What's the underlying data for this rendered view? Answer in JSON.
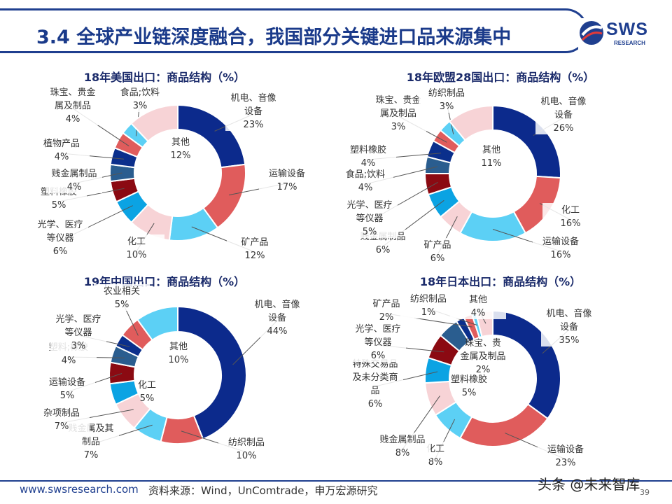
{
  "header": {
    "title": "3.4 全球产业链深度融合，我国部分关键进口品来源集中",
    "logo_text": "SWS",
    "logo_sub": "RESEARCH"
  },
  "footer": {
    "url": "www.swsresearch.com",
    "source": "资料来源：Wind，UnComtrade，申万宏源研究",
    "watermark": "头条 @未来智库",
    "page": "39"
  },
  "chart_data": [
    {
      "type": "pie",
      "title": "18年美国出口：商品结构（%）",
      "slices": [
        {
          "name": "机电、音像设备",
          "value": 23,
          "color": "#0c2a8c"
        },
        {
          "name": "运输设备",
          "value": 17,
          "color": "#e05c5c"
        },
        {
          "name": "矿产品",
          "value": 12,
          "color": "#5cd0f5"
        },
        {
          "name": "化工",
          "value": 10,
          "color": "#f7d3d6"
        },
        {
          "name": "光学、医疗等仪器",
          "value": 6,
          "color": "#0ba3e3"
        },
        {
          "name": "塑料橡胶",
          "value": 5,
          "color": "#8b0a12"
        },
        {
          "name": "贱金属制品",
          "value": 4,
          "color": "#2a5d8f"
        },
        {
          "name": "植物产品",
          "value": 4,
          "color": "#0b2f8c"
        },
        {
          "name": "珠宝、贵金属及制品",
          "value": 4,
          "color": "#e05c5c"
        },
        {
          "name": "食品;饮料",
          "value": 3,
          "color": "#5cd0f5"
        },
        {
          "name": "其他",
          "value": 12,
          "color": "#f7d3d6"
        }
      ]
    },
    {
      "type": "pie",
      "title": "18年欧盟28国出口：商品结构（%）",
      "slices": [
        {
          "name": "机电、音像设备",
          "value": 26,
          "color": "#0c2a8c"
        },
        {
          "name": "化工",
          "value": 16,
          "color": "#e05c5c"
        },
        {
          "name": "运输设备",
          "value": 16,
          "color": "#5cd0f5"
        },
        {
          "name": "矿产品",
          "value": 6,
          "color": "#f7d3d6"
        },
        {
          "name": "贱金属制品",
          "value": 6,
          "color": "#0ba3e3"
        },
        {
          "name": "光学、医疗等仪器",
          "value": 5,
          "color": "#8b0a12"
        },
        {
          "name": "食品;饮料",
          "value": 4,
          "color": "#2a5d8f"
        },
        {
          "name": "塑料橡胶",
          "value": 4,
          "color": "#0b2f8c"
        },
        {
          "name": "珠宝、贵金属及制品",
          "value": 3,
          "color": "#e05c5c"
        },
        {
          "name": "纺织制品",
          "value": 3,
          "color": "#5cd0f5"
        },
        {
          "name": "其他",
          "value": 11,
          "color": "#f7d3d6"
        }
      ]
    },
    {
      "type": "pie",
      "title": "19年中国出口：商品结构（%）",
      "slices": [
        {
          "name": "机电、音像设备",
          "value": 44,
          "color": "#0c2a8c"
        },
        {
          "name": "纺织制品",
          "value": 10,
          "color": "#e05c5c"
        },
        {
          "name": "贱金属及其制品",
          "value": 7,
          "color": "#5cd0f5"
        },
        {
          "name": "杂项制品",
          "value": 7,
          "color": "#f7d3d6"
        },
        {
          "name": "化工",
          "value": 5,
          "color": "#0ba3e3"
        },
        {
          "name": "运输设备",
          "value": 5,
          "color": "#8b0a12"
        },
        {
          "name": "塑料;橡胶",
          "value": 4,
          "color": "#2a5d8f"
        },
        {
          "name": "光学、医疗等仪器",
          "value": 3,
          "color": "#0b2f8c"
        },
        {
          "name": "农业相关",
          "value": 5,
          "color": "#e05c5c"
        },
        {
          "name": "其他",
          "value": 10,
          "color": "#5cd0f5"
        }
      ]
    },
    {
      "type": "pie",
      "title": "18年日本出口：商品结构（%）",
      "slices": [
        {
          "name": "机电、音像设备",
          "value": 35,
          "color": "#0c2a8c"
        },
        {
          "name": "运输设备",
          "value": 23,
          "color": "#e05c5c"
        },
        {
          "name": "化工",
          "value": 8,
          "color": "#5cd0f5"
        },
        {
          "name": "贱金属制品",
          "value": 8,
          "color": "#f7d3d6"
        },
        {
          "name": "特殊交易品及未分类商品",
          "value": 6,
          "color": "#0ba3e3"
        },
        {
          "name": "光学、医疗等仪器",
          "value": 6,
          "color": "#8b0a12"
        },
        {
          "name": "塑料橡胶",
          "value": 5,
          "color": "#2a5d8f"
        },
        {
          "name": "珠宝、贵金属及制品",
          "value": 2,
          "color": "#0b2f8c"
        },
        {
          "name": "矿产品",
          "value": 2,
          "color": "#e05c5c"
        },
        {
          "name": "纺织制品",
          "value": 1,
          "color": "#5cd0f5"
        },
        {
          "name": "其他",
          "value": 4,
          "color": "#f7d3d6"
        }
      ]
    }
  ]
}
